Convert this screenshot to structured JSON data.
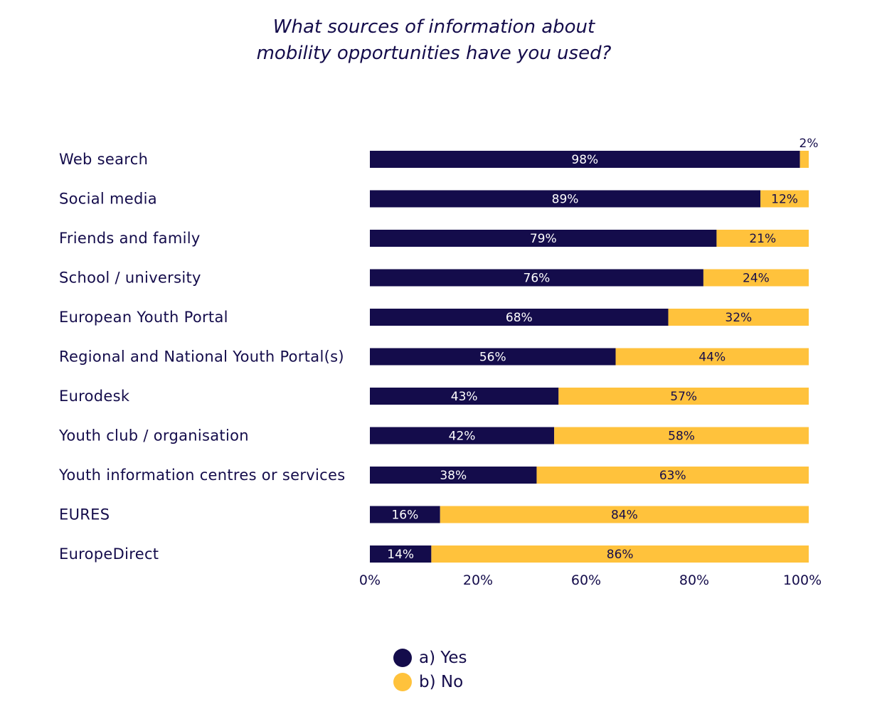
{
  "chart_data": {
    "type": "bar",
    "orientation": "horizontal",
    "stacked": true,
    "title": "What sources of information about\nmobility opportunities have you used?",
    "title_lines": [
      "What sources of information about",
      "mobility opportunities have you used?"
    ],
    "categories": [
      "Web search",
      "Social media",
      "Friends and family",
      "School / university",
      "European Youth Portal",
      "Regional and National Youth Portal(s)",
      "Eurodesk",
      "Youth club / organisation",
      "Youth information centres or services",
      "EURES",
      "EuropeDirect"
    ],
    "series": [
      {
        "name": "a) Yes",
        "color": "#140c4b",
        "values": [
          98,
          89,
          79,
          76,
          68,
          56,
          43,
          42,
          38,
          16,
          14
        ]
      },
      {
        "name": "b) No",
        "color": "#ffc23c",
        "values": [
          2,
          12,
          21,
          24,
          32,
          44,
          57,
          58,
          63,
          84,
          86
        ]
      }
    ],
    "x_tick_labels": [
      "0%",
      "20%",
      "60%",
      "80%",
      "100%"
    ],
    "xlim": [
      0,
      100
    ],
    "grid": false,
    "legend_placement": "bottom"
  }
}
